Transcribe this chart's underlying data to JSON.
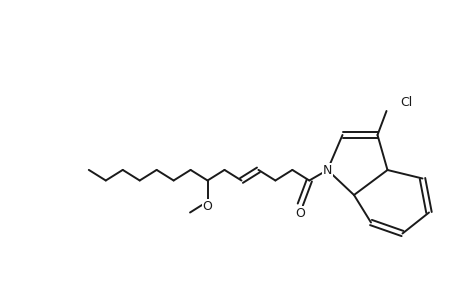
{
  "line_color": "#1a1a1a",
  "bg_color": "#ffffff",
  "line_width": 1.4,
  "font_size": 9,
  "figsize": [
    4.6,
    3.0
  ],
  "dpi": 100,
  "xlim": [
    -0.2,
    9.0
  ],
  "ylim": [
    -0.3,
    5.2
  ]
}
